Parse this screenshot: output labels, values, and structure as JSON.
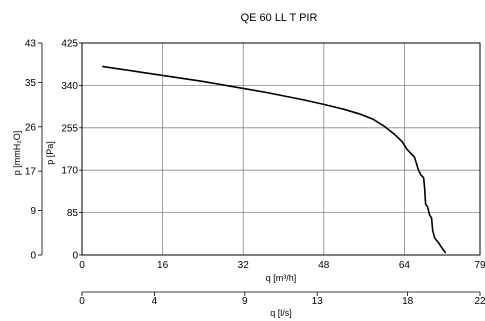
{
  "chart_data": {
    "type": "line",
    "title": "QE 60 LL T PIR",
    "xlabel": "q [m³/h]",
    "xlabel2": "q [l/s]",
    "ylabel": "p [Pa]",
    "ylabel2": "p [mmH₂O]",
    "xlim": [
      0,
      79
    ],
    "ylim": [
      0,
      425
    ],
    "grid": true,
    "x_ticks": [
      "0",
      "16",
      "32",
      "48",
      "64",
      "79"
    ],
    "x_tick_values": [
      0,
      16,
      32,
      48,
      64,
      79
    ],
    "x2_ticks": [
      "0",
      "4",
      "9",
      "13",
      "18",
      "22"
    ],
    "x2_tick_values": [
      0,
      4,
      9,
      13,
      18,
      22
    ],
    "x2lim": [
      0,
      22
    ],
    "y_ticks": [
      "0",
      "85",
      "170",
      "255",
      "340",
      "425"
    ],
    "y_tick_values": [
      0,
      85,
      170,
      255,
      340,
      425
    ],
    "y2_ticks": [
      "0",
      "9",
      "17",
      "26",
      "35",
      "43"
    ],
    "y2_tick_values": [
      0,
      9,
      17,
      26,
      35,
      43
    ],
    "y2lim": [
      0,
      43
    ],
    "series": [
      {
        "color": "#000000",
        "points": [
          [
            4.0,
            378
          ],
          [
            8.0,
            372
          ],
          [
            12.0,
            366
          ],
          [
            16.0,
            360
          ],
          [
            20.0,
            354
          ],
          [
            24.0,
            348
          ],
          [
            28.0,
            341
          ],
          [
            32.0,
            334
          ],
          [
            36.0,
            327
          ],
          [
            40.0,
            319
          ],
          [
            44.0,
            311
          ],
          [
            48.0,
            302
          ],
          [
            52.0,
            292
          ],
          [
            55.0,
            283
          ],
          [
            57.8,
            272
          ],
          [
            60.0,
            258
          ],
          [
            62.0,
            242
          ],
          [
            63.5,
            228
          ],
          [
            64.5,
            212
          ],
          [
            66.0,
            196
          ],
          [
            66.8,
            170
          ],
          [
            67.3,
            160
          ],
          [
            67.8,
            155
          ],
          [
            68.0,
            135
          ],
          [
            68.2,
            102
          ],
          [
            68.6,
            96
          ],
          [
            69.0,
            80
          ],
          [
            69.4,
            74
          ],
          [
            69.6,
            50
          ],
          [
            70.0,
            34
          ],
          [
            70.8,
            24
          ],
          [
            71.6,
            12
          ],
          [
            72.2,
            4
          ]
        ]
      }
    ]
  }
}
